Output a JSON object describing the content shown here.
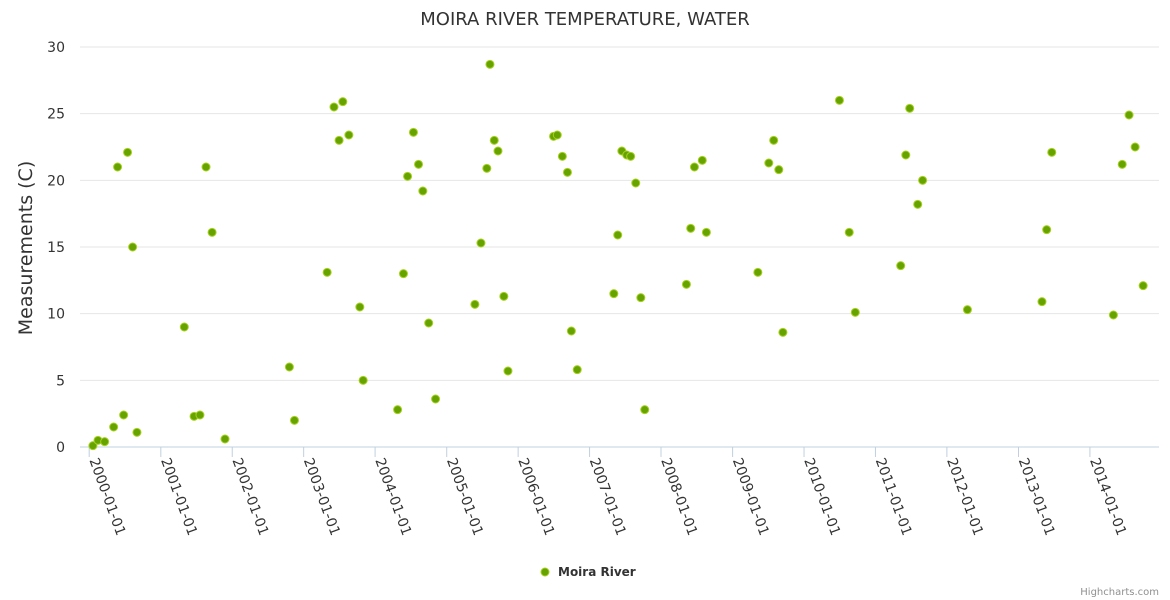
{
  "chart_data": {
    "type": "scatter",
    "title": "MOIRA RIVER TEMPERATURE, WATER",
    "xlabel": "",
    "ylabel": "Measurements (C)",
    "ylim": [
      0,
      30
    ],
    "yticks": [
      0,
      5,
      10,
      15,
      20,
      25,
      30
    ],
    "xlim": [
      "1999-11-15",
      "2014-12-20"
    ],
    "xticks": [
      "2000-01-01",
      "2001-01-01",
      "2002-01-01",
      "2003-01-01",
      "2004-01-01",
      "2005-01-01",
      "2006-01-01",
      "2007-01-01",
      "2008-01-01",
      "2009-01-01",
      "2010-01-01",
      "2011-01-01",
      "2012-01-01",
      "2013-01-01",
      "2014-01-01"
    ],
    "grid": true,
    "legend": "bottom-center",
    "series": [
      {
        "name": "Moira River",
        "color": "#66a300",
        "edge_color": "#a6d11f",
        "points": [
          [
            "2000-01-20",
            0.1
          ],
          [
            "2000-02-15",
            0.5
          ],
          [
            "2000-03-20",
            0.4
          ],
          [
            "2000-05-05",
            1.5
          ],
          [
            "2000-05-25",
            21.0
          ],
          [
            "2000-06-25",
            2.4
          ],
          [
            "2000-07-15",
            22.1
          ],
          [
            "2000-08-10",
            15.0
          ],
          [
            "2000-09-01",
            1.1
          ],
          [
            "2001-05-01",
            9.0
          ],
          [
            "2001-06-20",
            2.3
          ],
          [
            "2001-07-20",
            2.4
          ],
          [
            "2001-08-20",
            21.0
          ],
          [
            "2001-09-20",
            16.1
          ],
          [
            "2001-11-25",
            0.6
          ],
          [
            "2002-10-20",
            6.0
          ],
          [
            "2002-11-15",
            2.0
          ],
          [
            "2003-05-01",
            13.1
          ],
          [
            "2003-06-05",
            25.5
          ],
          [
            "2003-07-01",
            23.0
          ],
          [
            "2003-07-20",
            25.9
          ],
          [
            "2003-08-20",
            23.4
          ],
          [
            "2003-10-15",
            10.5
          ],
          [
            "2003-11-01",
            5.0
          ],
          [
            "2004-04-25",
            2.8
          ],
          [
            "2004-05-25",
            13.0
          ],
          [
            "2004-06-15",
            20.3
          ],
          [
            "2004-07-15",
            23.6
          ],
          [
            "2004-08-10",
            21.2
          ],
          [
            "2004-09-01",
            19.2
          ],
          [
            "2004-10-01",
            9.3
          ],
          [
            "2004-11-05",
            3.6
          ],
          [
            "2005-05-25",
            10.7
          ],
          [
            "2005-06-25",
            15.3
          ],
          [
            "2005-07-25",
            20.9
          ],
          [
            "2005-08-10",
            28.7
          ],
          [
            "2005-09-01",
            23.0
          ],
          [
            "2005-09-20",
            22.2
          ],
          [
            "2005-10-20",
            11.3
          ],
          [
            "2005-11-10",
            5.7
          ],
          [
            "2006-07-01",
            23.3
          ],
          [
            "2006-07-20",
            23.4
          ],
          [
            "2006-08-15",
            21.8
          ],
          [
            "2006-09-10",
            20.6
          ],
          [
            "2006-09-30",
            8.7
          ],
          [
            "2006-10-30",
            5.8
          ],
          [
            "2007-05-05",
            11.5
          ],
          [
            "2007-05-25",
            15.9
          ],
          [
            "2007-06-15",
            22.2
          ],
          [
            "2007-07-10",
            21.9
          ],
          [
            "2007-07-30",
            21.8
          ],
          [
            "2007-08-25",
            19.8
          ],
          [
            "2007-09-20",
            11.2
          ],
          [
            "2007-10-10",
            2.8
          ],
          [
            "2008-05-10",
            12.2
          ],
          [
            "2008-06-01",
            16.4
          ],
          [
            "2008-06-20",
            21.0
          ],
          [
            "2008-07-30",
            21.5
          ],
          [
            "2008-08-20",
            16.1
          ],
          [
            "2009-05-10",
            13.1
          ],
          [
            "2009-07-05",
            21.3
          ],
          [
            "2009-07-30",
            23.0
          ],
          [
            "2009-08-25",
            20.8
          ],
          [
            "2009-09-15",
            8.6
          ],
          [
            "2010-07-01",
            26.0
          ],
          [
            "2010-08-20",
            16.1
          ],
          [
            "2010-09-20",
            10.1
          ],
          [
            "2011-05-10",
            13.6
          ],
          [
            "2011-06-05",
            21.9
          ],
          [
            "2011-06-25",
            25.4
          ],
          [
            "2011-08-05",
            18.2
          ],
          [
            "2011-08-30",
            20.0
          ],
          [
            "2012-04-15",
            10.3
          ],
          [
            "2013-05-01",
            10.9
          ],
          [
            "2013-05-25",
            16.3
          ],
          [
            "2013-06-20",
            22.1
          ],
          [
            "2014-05-01",
            9.9
          ],
          [
            "2014-06-15",
            21.2
          ],
          [
            "2014-07-20",
            24.9
          ],
          [
            "2014-08-20",
            22.5
          ],
          [
            "2014-09-30",
            12.1
          ]
        ]
      }
    ],
    "credits": "Highcharts.com"
  }
}
